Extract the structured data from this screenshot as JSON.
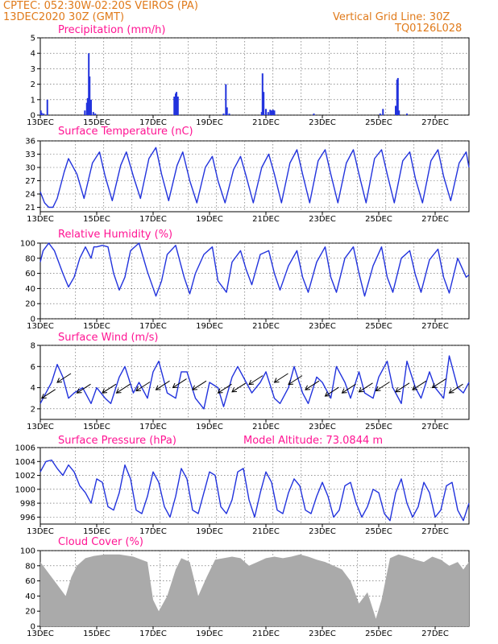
{
  "header": {
    "line1_left": "CPTEC:   052:30W-02:20S   VEIROS (PA)",
    "line2_left": "13DEC2020 30Z (GMT)",
    "line1_right": "Vertical Grid Line: 30Z",
    "line2_right": "TQ0126L028"
  },
  "colors": {
    "header": "#e07a1a",
    "title": "#ff1493",
    "line": "#2233dd",
    "cloud": "#aaaaaa"
  },
  "panels": {
    "precip": {
      "title": "Precipitation (mm/h)"
    },
    "temp": {
      "title": "Surface Temperature (nC)"
    },
    "rh": {
      "title": "Relative Humidity (%)"
    },
    "wind": {
      "title": "Surface Wind (m/s)"
    },
    "pres": {
      "title": "Surface Pressure (hPa)",
      "altitude_label": "Model Altitude: 73.0844 m"
    },
    "cloud": {
      "title": "Cloud Cover (%)"
    }
  },
  "chart_data": [
    {
      "type": "bar",
      "title": "Precipitation (mm/h)",
      "ylim": [
        0,
        5
      ],
      "yticks": [
        "0",
        "1",
        "2",
        "3",
        "4",
        "5"
      ],
      "x_start_day": 13,
      "x_end_day": 28.2,
      "xticks": [
        "13DEC",
        "15DEC",
        "17DEC",
        "19DEC",
        "21DEC",
        "23DEC",
        "25DEC",
        "27DEC"
      ],
      "x": [
        13.02,
        13.05,
        13.12,
        13.25,
        14.58,
        14.65,
        14.68,
        14.72,
        14.75,
        14.8,
        14.88,
        14.95,
        17.75,
        17.8,
        17.83,
        17.88,
        19.5,
        19.58,
        19.62,
        19.7,
        20.85,
        20.88,
        20.92,
        21.0,
        21.08,
        21.15,
        21.2,
        21.25,
        21.3,
        22.7,
        25.05,
        25.15,
        25.6,
        25.65,
        25.68,
        25.72,
        26.0
      ],
      "values": [
        0.3,
        0.15,
        0.1,
        1.0,
        0.3,
        0.8,
        1.1,
        4.0,
        2.5,
        1.0,
        0.2,
        0.1,
        1.2,
        1.4,
        1.5,
        1.2,
        0.1,
        2.0,
        0.5,
        0.1,
        0.2,
        2.7,
        1.5,
        0.4,
        0.2,
        0.35,
        0.3,
        0.35,
        0.3,
        0.1,
        0.1,
        0.4,
        0.6,
        2.3,
        2.4,
        0.3,
        0.1
      ]
    },
    {
      "type": "line",
      "title": "Surface Temperature (nC)",
      "ylim": [
        20,
        36
      ],
      "yticks": [
        "21",
        "24",
        "27",
        "30",
        "33",
        "36"
      ],
      "x_start_day": 13,
      "x_end_day": 28.2,
      "xticks": [
        "13DEC",
        "15DEC",
        "17DEC",
        "19DEC",
        "21DEC",
        "23DEC",
        "25DEC",
        "27DEC"
      ],
      "x": [
        13.0,
        13.15,
        13.3,
        13.45,
        13.6,
        13.85,
        14.0,
        14.3,
        14.55,
        14.85,
        15.1,
        15.3,
        15.55,
        15.85,
        16.05,
        16.3,
        16.55,
        16.85,
        17.1,
        17.3,
        17.55,
        17.85,
        18.05,
        18.3,
        18.55,
        18.85,
        19.1,
        19.3,
        19.55,
        19.85,
        20.1,
        20.3,
        20.55,
        20.85,
        21.1,
        21.3,
        21.55,
        21.85,
        22.1,
        22.3,
        22.55,
        22.85,
        23.1,
        23.3,
        23.55,
        23.85,
        24.1,
        24.3,
        24.55,
        24.85,
        25.1,
        25.3,
        25.55,
        25.85,
        26.1,
        26.3,
        26.55,
        26.85,
        27.1,
        27.3,
        27.55,
        27.85,
        28.1,
        28.2
      ],
      "values": [
        24.5,
        22.0,
        21.0,
        21.0,
        23.0,
        29.0,
        32.0,
        28.5,
        23.0,
        31.0,
        33.5,
        28.0,
        22.5,
        30.5,
        33.5,
        28.0,
        23.0,
        32.0,
        34.5,
        28.5,
        22.5,
        30.5,
        33.5,
        27.0,
        22.0,
        30.0,
        32.5,
        27.0,
        22.0,
        29.5,
        32.5,
        28.0,
        22.0,
        30.0,
        33.0,
        28.5,
        22.0,
        31.0,
        34.0,
        28.5,
        22.0,
        31.5,
        34.0,
        28.5,
        22.0,
        31.0,
        34.0,
        28.5,
        22.0,
        32.0,
        34.0,
        28.5,
        22.0,
        31.5,
        33.5,
        27.5,
        22.0,
        31.5,
        34.0,
        28.0,
        22.5,
        31.0,
        33.5,
        30.0
      ]
    },
    {
      "type": "line",
      "title": "Relative Humidity (%)",
      "ylim": [
        0,
        100
      ],
      "yticks": [
        "0",
        "20",
        "40",
        "60",
        "80",
        "100"
      ],
      "x_start_day": 13,
      "x_end_day": 28.2,
      "xticks": [
        "13DEC",
        "15DEC",
        "17DEC",
        "19DEC",
        "21DEC",
        "23DEC",
        "25DEC",
        "27DEC"
      ],
      "x": [
        13.0,
        13.1,
        13.3,
        13.5,
        13.8,
        14.0,
        14.2,
        14.4,
        14.6,
        14.8,
        14.9,
        15.0,
        15.2,
        15.4,
        15.6,
        15.8,
        16.0,
        16.2,
        16.5,
        16.8,
        17.1,
        17.3,
        17.5,
        17.8,
        18.1,
        18.3,
        18.5,
        18.8,
        19.1,
        19.3,
        19.6,
        19.8,
        20.1,
        20.3,
        20.5,
        20.8,
        21.1,
        21.3,
        21.5,
        21.8,
        22.1,
        22.3,
        22.5,
        22.8,
        23.1,
        23.3,
        23.5,
        23.8,
        24.1,
        24.3,
        24.5,
        24.8,
        25.1,
        25.3,
        25.5,
        25.8,
        26.1,
        26.3,
        26.5,
        26.8,
        27.1,
        27.3,
        27.5,
        27.8,
        28.1,
        28.2
      ],
      "values": [
        75,
        90,
        100,
        90,
        60,
        42,
        55,
        80,
        95,
        80,
        95,
        95,
        97,
        95,
        60,
        38,
        55,
        90,
        100,
        62,
        30,
        50,
        85,
        97,
        55,
        33,
        60,
        85,
        95,
        50,
        35,
        75,
        90,
        65,
        45,
        85,
        90,
        60,
        38,
        70,
        90,
        55,
        35,
        75,
        95,
        55,
        35,
        80,
        95,
        60,
        30,
        70,
        95,
        55,
        35,
        80,
        90,
        58,
        35,
        78,
        92,
        55,
        34,
        80,
        55,
        58
      ]
    },
    {
      "type": "line",
      "title": "Surface Wind (m/s)",
      "ylim": [
        1,
        8
      ],
      "yticks": [
        "2",
        "4",
        "6",
        "8"
      ],
      "x_start_day": 13,
      "x_end_day": 28.2,
      "xticks": [
        "13DEC",
        "15DEC",
        "17DEC",
        "19DEC",
        "21DEC",
        "23DEC",
        "25DEC",
        "27DEC"
      ],
      "x": [
        13.0,
        13.2,
        13.4,
        13.6,
        13.8,
        14.0,
        14.2,
        14.5,
        14.8,
        15.0,
        15.3,
        15.5,
        15.8,
        16.0,
        16.3,
        16.5,
        16.8,
        17.0,
        17.2,
        17.5,
        17.8,
        18.0,
        18.2,
        18.5,
        18.8,
        19.0,
        19.3,
        19.5,
        19.8,
        20.0,
        20.3,
        20.5,
        20.8,
        21.0,
        21.3,
        21.5,
        21.8,
        22.0,
        22.3,
        22.5,
        22.8,
        23.0,
        23.3,
        23.5,
        23.8,
        24.0,
        24.3,
        24.5,
        24.8,
        25.0,
        25.3,
        25.5,
        25.8,
        26.0,
        26.3,
        26.5,
        26.8,
        27.0,
        27.3,
        27.5,
        27.8,
        28.0,
        28.2
      ],
      "values": [
        2.5,
        3.5,
        4.5,
        6.2,
        5.0,
        3.0,
        3.5,
        4.0,
        2.5,
        4.0,
        3.0,
        2.5,
        5.0,
        6.0,
        3.5,
        4.5,
        3.0,
        5.5,
        6.5,
        3.5,
        3.0,
        5.5,
        5.5,
        3.0,
        2.0,
        4.5,
        4.0,
        2.2,
        5.0,
        6.0,
        4.5,
        3.5,
        4.5,
        5.5,
        3.0,
        2.5,
        4.0,
        6.0,
        3.5,
        2.5,
        5.0,
        4.5,
        3.0,
        6.0,
        4.5,
        3.0,
        5.5,
        3.5,
        3.0,
        5.0,
        6.5,
        4.0,
        2.5,
        6.5,
        4.0,
        3.0,
        5.5,
        4.0,
        3.0,
        7.0,
        4.0,
        3.5,
        4.5
      ],
      "vector_x": [
        13.05,
        13.6,
        14.3,
        15.2,
        15.7,
        16.4,
        17.1,
        17.7,
        18.4,
        19.3,
        19.8,
        20.4,
        21.3,
        21.8,
        22.4,
        23.1,
        23.7,
        24.3,
        24.9,
        25.6,
        26.2,
        26.9,
        27.5
      ],
      "vector_y": [
        3.0,
        4.5,
        3.5,
        3.5,
        3.5,
        3.7,
        3.8,
        4.0,
        3.8,
        3.5,
        3.6,
        4.3,
        4.5,
        4.3,
        3.8,
        3.2,
        3.5,
        3.6,
        3.7,
        3.6,
        3.8,
        4.0,
        3.5
      ]
    },
    {
      "type": "line",
      "title": "Surface Pressure (hPa)",
      "ylim": [
        995,
        1006
      ],
      "yticks": [
        "996",
        "998",
        "1000",
        "1002",
        "1004",
        "1006"
      ],
      "x_start_day": 13,
      "x_end_day": 28.2,
      "xticks": [
        "13DEC",
        "15DEC",
        "17DEC",
        "19DEC",
        "21DEC",
        "23DEC",
        "25DEC",
        "27DEC"
      ],
      "x": [
        13.0,
        13.2,
        13.4,
        13.6,
        13.8,
        14.0,
        14.2,
        14.4,
        14.6,
        14.8,
        15.0,
        15.2,
        15.4,
        15.6,
        15.8,
        16.0,
        16.2,
        16.4,
        16.6,
        16.8,
        17.0,
        17.2,
        17.4,
        17.6,
        17.8,
        18.0,
        18.2,
        18.4,
        18.6,
        18.8,
        19.0,
        19.2,
        19.4,
        19.6,
        19.8,
        20.0,
        20.2,
        20.4,
        20.6,
        20.8,
        21.0,
        21.2,
        21.4,
        21.6,
        21.8,
        22.0,
        22.2,
        22.4,
        22.6,
        22.8,
        23.0,
        23.2,
        23.4,
        23.6,
        23.8,
        24.0,
        24.2,
        24.4,
        24.6,
        24.8,
        25.0,
        25.2,
        25.4,
        25.6,
        25.8,
        26.0,
        26.2,
        26.4,
        26.6,
        26.8,
        27.0,
        27.2,
        27.4,
        27.6,
        27.8,
        28.0,
        28.2
      ],
      "values": [
        1002.5,
        1004.0,
        1004.2,
        1003.0,
        1002.0,
        1003.5,
        1002.5,
        1000.5,
        999.5,
        998.0,
        1001.5,
        1001.0,
        997.5,
        997.0,
        999.5,
        1003.5,
        1001.5,
        997.0,
        996.5,
        999.0,
        1002.5,
        1001.0,
        997.5,
        996.0,
        999.0,
        1003.0,
        1001.5,
        997.0,
        996.5,
        999.5,
        1002.5,
        1002.0,
        997.5,
        996.5,
        998.5,
        1002.5,
        1003.0,
        998.5,
        996.0,
        999.5,
        1002.5,
        1001.0,
        997.0,
        996.5,
        999.5,
        1001.5,
        1000.5,
        997.0,
        996.5,
        999.0,
        1001.0,
        999.0,
        996.0,
        997.0,
        1000.5,
        1001.0,
        998.0,
        996.0,
        997.5,
        1000.0,
        999.5,
        996.5,
        995.5,
        999.5,
        1001.5,
        998.0,
        996.0,
        997.5,
        1001.0,
        999.5,
        996.0,
        997.0,
        1000.5,
        1001.0,
        997.0,
        995.5,
        998.0
      ]
    },
    {
      "type": "area",
      "title": "Cloud Cover (%)",
      "ylim": [
        0,
        100
      ],
      "yticks": [
        "0",
        "20",
        "40",
        "60",
        "80",
        "100"
      ],
      "x_start_day": 13,
      "x_end_day": 28.2,
      "xticks": [
        "13DEC",
        "15DEC",
        "17DEC",
        "19DEC",
        "21DEC",
        "23DEC",
        "25DEC",
        "27DEC"
      ],
      "x": [
        13.0,
        13.3,
        13.6,
        13.9,
        14.1,
        14.3,
        14.6,
        14.9,
        15.3,
        15.8,
        16.3,
        16.8,
        17.0,
        17.2,
        17.5,
        17.8,
        18.0,
        18.3,
        18.6,
        18.9,
        19.2,
        19.5,
        19.8,
        20.1,
        20.4,
        20.7,
        21.0,
        21.3,
        21.6,
        21.9,
        22.2,
        22.5,
        22.8,
        23.1,
        23.4,
        23.7,
        24.0,
        24.3,
        24.6,
        24.9,
        25.1,
        25.4,
        25.7,
        26.0,
        26.3,
        26.6,
        26.9,
        27.2,
        27.5,
        27.8,
        28.0,
        28.2
      ],
      "values": [
        85,
        70,
        55,
        40,
        65,
        80,
        90,
        93,
        95,
        95,
        92,
        85,
        35,
        20,
        40,
        75,
        90,
        85,
        40,
        65,
        88,
        90,
        92,
        90,
        80,
        85,
        90,
        92,
        90,
        92,
        95,
        92,
        88,
        85,
        80,
        75,
        60,
        30,
        45,
        10,
        35,
        90,
        95,
        92,
        88,
        85,
        92,
        88,
        80,
        85,
        75,
        85
      ]
    }
  ]
}
